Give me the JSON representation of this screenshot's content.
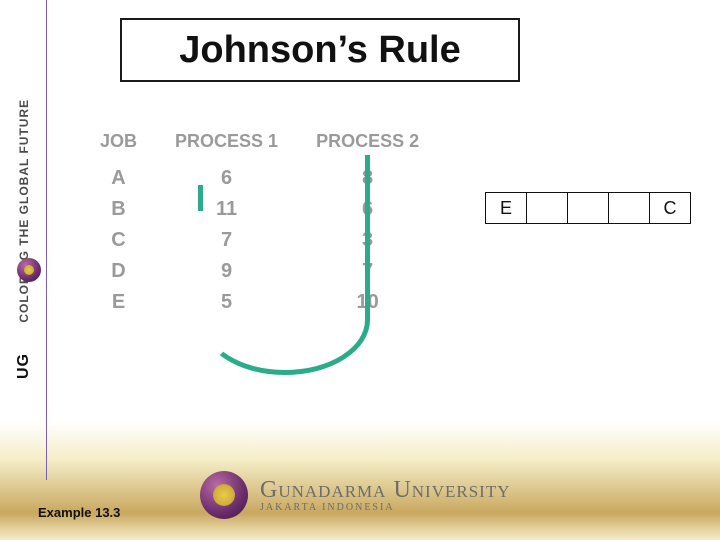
{
  "title": "Johnson’s Rule",
  "example_label": "Example 13.3",
  "left_rail_text": "COLORING THE GLOBAL FUTURE",
  "left_rail_brand": "UG",
  "university": {
    "name": "Gunadarma University",
    "subtitle": "JAKARTA INDONESIA"
  },
  "table": {
    "columns": [
      "JOB",
      "PROCESS 1",
      "PROCESS 2"
    ],
    "rows": [
      [
        "A",
        "6",
        "8"
      ],
      [
        "B",
        "11",
        "6"
      ],
      [
        "C",
        "7",
        "3"
      ],
      [
        "D",
        "9",
        "7"
      ],
      [
        "E",
        "5",
        "10"
      ]
    ],
    "header_color": "#9a9a9a",
    "cell_color": "#9a9a9a"
  },
  "arc_color": "#2aab8a",
  "sequence": {
    "cells": [
      "E",
      "",
      "",
      "",
      "C"
    ]
  },
  "colors": {
    "title_border": "#1a1a1a",
    "vline": "#7a5fb8",
    "background_gradient": [
      "#ffffff",
      "#f5eec8",
      "#c9a85f"
    ]
  }
}
